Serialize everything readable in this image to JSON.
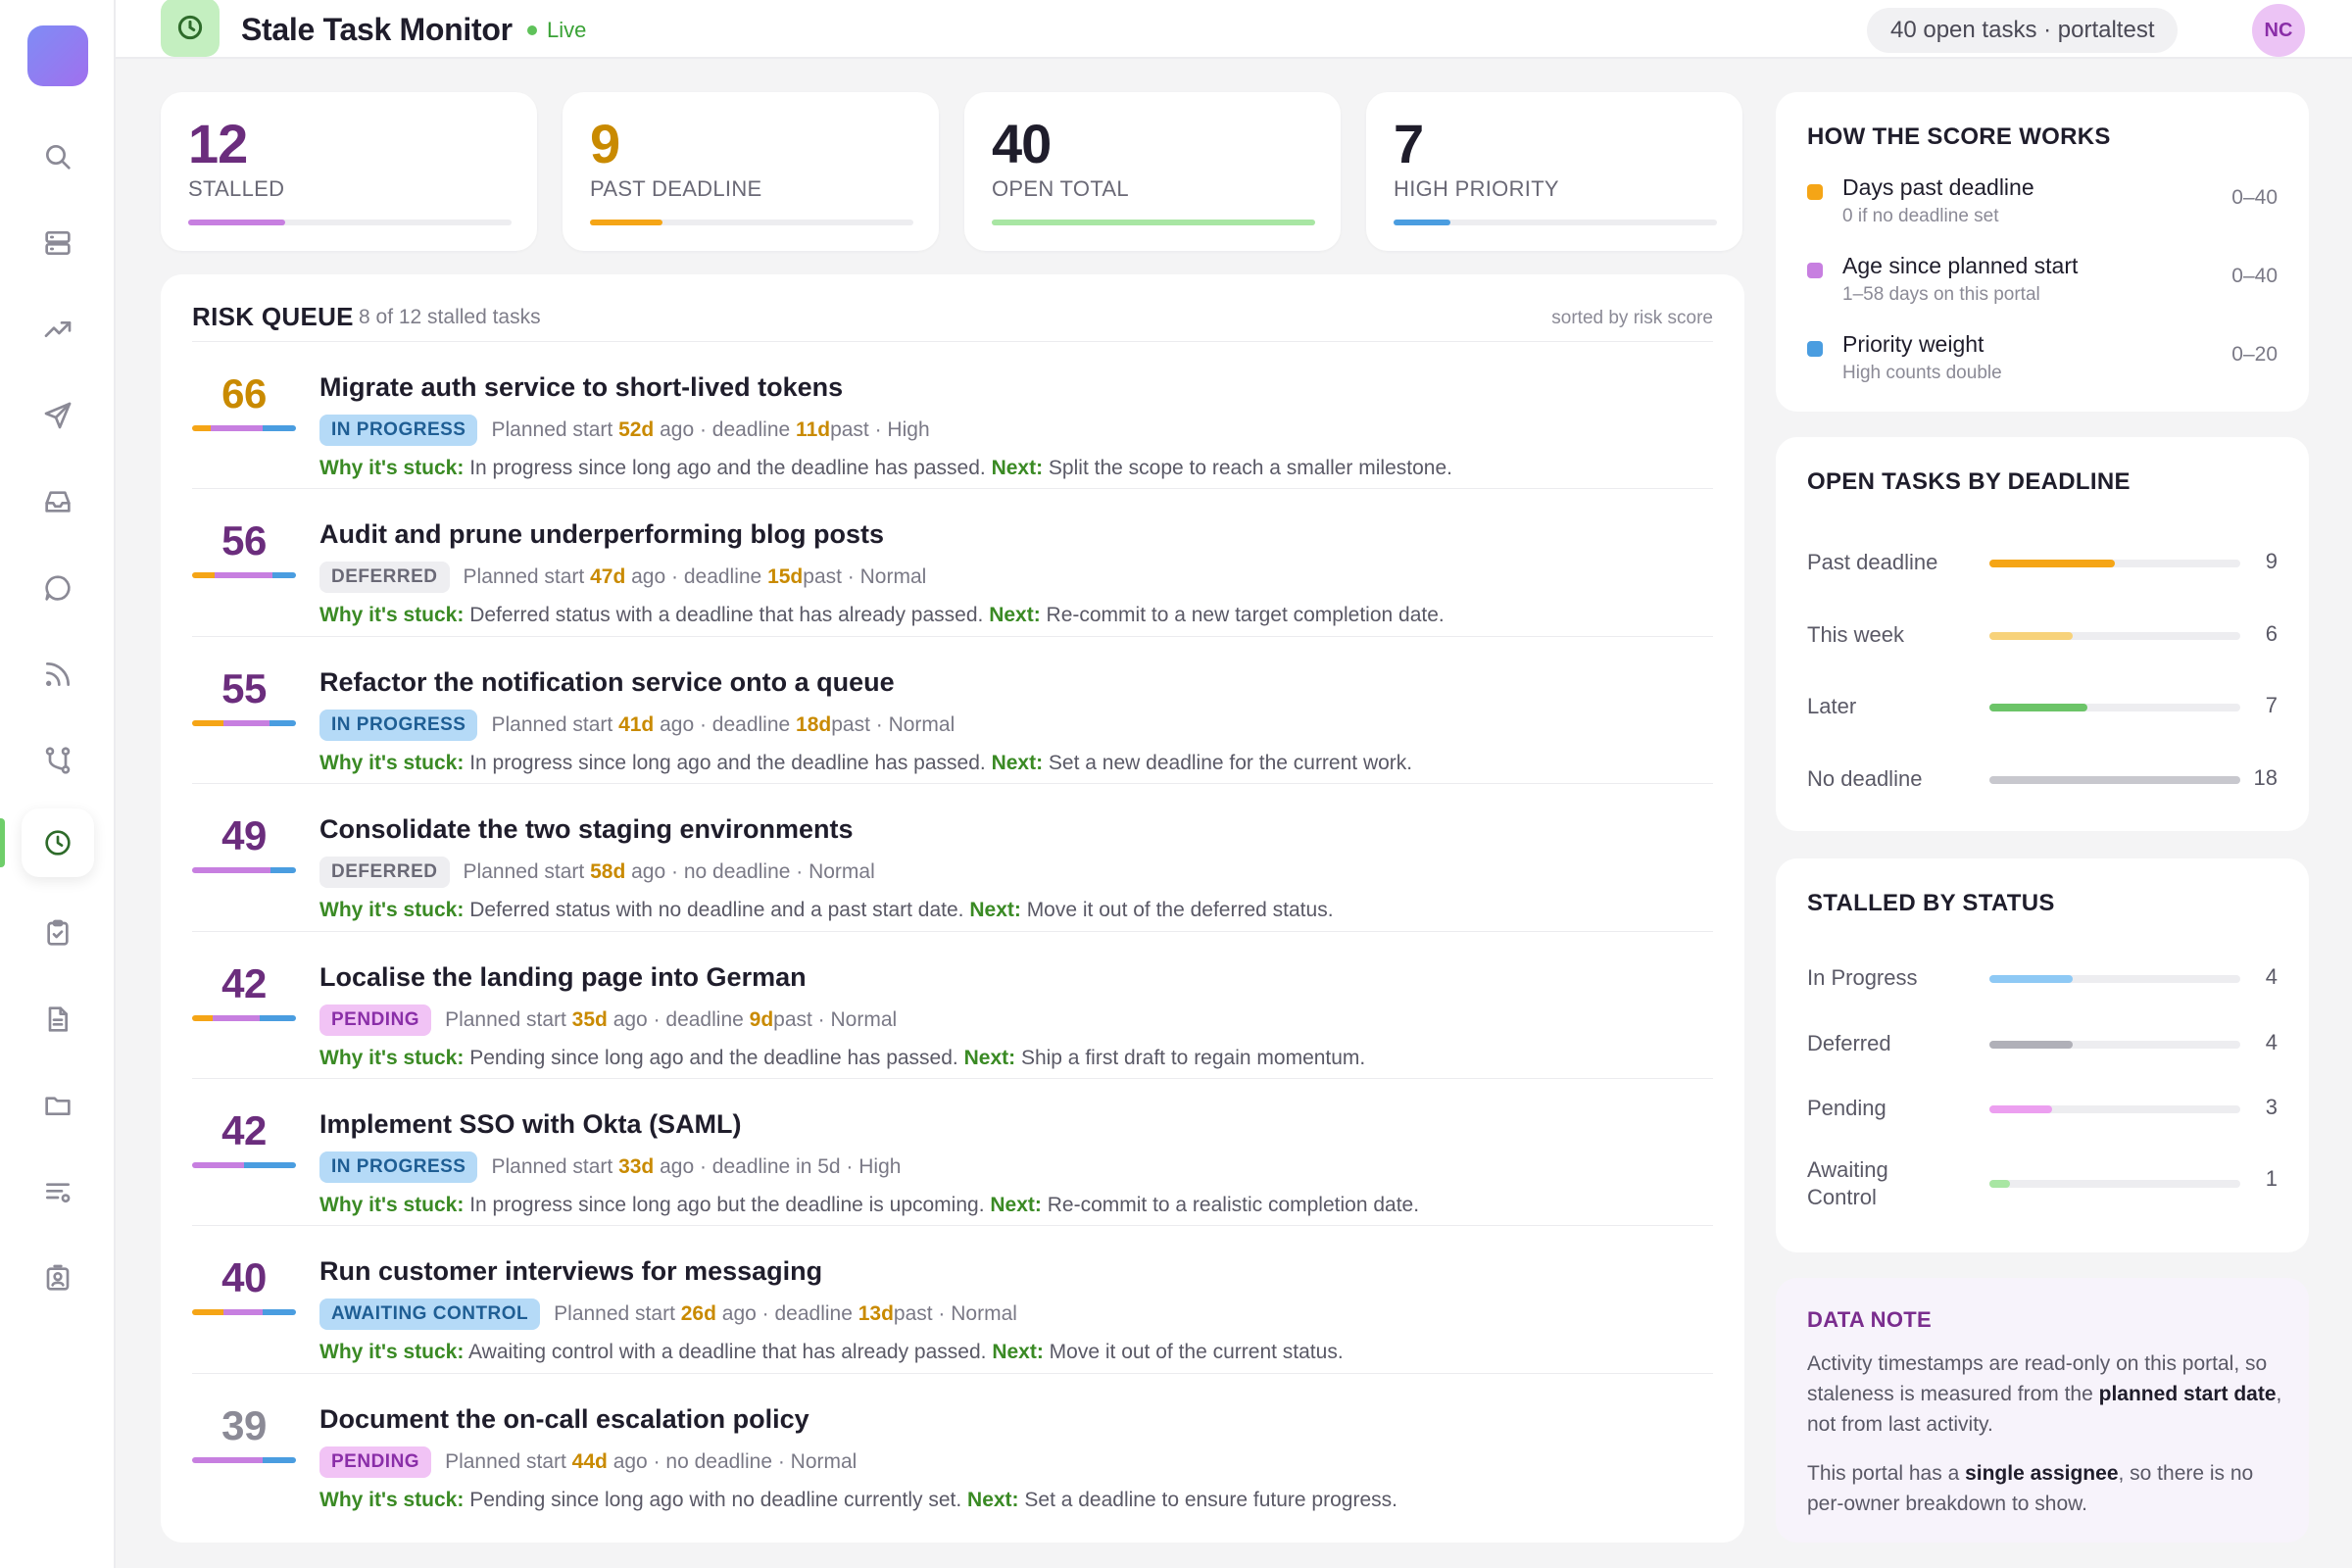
{
  "header": {
    "title": "Stale Task Monitor",
    "live_label": "Live",
    "open_tasks_chip": "40 open tasks · portaltest",
    "avatar_initials": "NC"
  },
  "sidebar": {
    "items": [
      {
        "icon": "search-icon"
      },
      {
        "icon": "server-icon"
      },
      {
        "icon": "trending-up-icon"
      },
      {
        "icon": "send-icon"
      },
      {
        "icon": "inbox-icon"
      },
      {
        "icon": "chat-icon"
      },
      {
        "icon": "rss-icon"
      },
      {
        "icon": "git-branch-icon"
      },
      {
        "icon": "clock-icon",
        "active": true
      },
      {
        "icon": "clipboard-check-icon"
      },
      {
        "icon": "document-icon"
      },
      {
        "icon": "folder-icon"
      },
      {
        "icon": "list-settings-icon"
      },
      {
        "icon": "id-badge-icon"
      }
    ]
  },
  "stats": [
    {
      "value": "12",
      "label": "STALLED",
      "color": "#6b2d7d",
      "bar_color": "#c77fe0",
      "fill_fraction": 0.3
    },
    {
      "value": "9",
      "label": "PAST DEADLINE",
      "color": "#c98a00",
      "bar_color": "#f5a516",
      "fill_fraction": 0.225
    },
    {
      "value": "40",
      "label": "OPEN TOTAL",
      "color": "#1f1d2b",
      "bar_color": "#a8e6a3",
      "fill_fraction": 1.0
    },
    {
      "value": "7",
      "label": "HIGH PRIORITY",
      "color": "#1f1d2b",
      "bar_color": "#4a9de0",
      "fill_fraction": 0.175
    }
  ],
  "queue": {
    "title": "RISK QUEUE",
    "subtitle": "8 of 12 stalled tasks",
    "sort_label": "sorted by risk score",
    "why_label": "Why it's stuck:",
    "next_label": "Next:",
    "tasks": [
      {
        "score": "66",
        "score_color": "#c98a00",
        "title": "Migrate auth service to short-lived tokens",
        "status": "IN PROGRESS",
        "status_class": "b-progress",
        "start_prefix": "Planned start ",
        "start_days": "52d",
        "start_suffix": " ago · deadline ",
        "deadline_hl": "11d",
        "deadline_suffix": " past · High",
        "why": " In progress since long ago and the deadline has passed. ",
        "next": " Split the scope to reach a smaller milestone.",
        "bar": [
          0.18,
          0.5,
          0.32
        ]
      },
      {
        "score": "56",
        "score_color": "#6b2d7d",
        "title": "Audit and prune underperforming blog posts",
        "status": "DEFERRED",
        "status_class": "b-deferred",
        "start_prefix": "Planned start ",
        "start_days": "47d",
        "start_suffix": " ago · deadline ",
        "deadline_hl": "15d",
        "deadline_suffix": " past · Normal",
        "why": " Deferred status with a deadline that has already passed. ",
        "next": " Re-commit to a new target completion date.",
        "bar": [
          0.22,
          0.55,
          0.23
        ]
      },
      {
        "score": "55",
        "score_color": "#6b2d7d",
        "title": "Refactor the notification service onto a queue",
        "status": "IN PROGRESS",
        "status_class": "b-progress",
        "start_prefix": "Planned start ",
        "start_days": "41d",
        "start_suffix": " ago · deadline ",
        "deadline_hl": "18d",
        "deadline_suffix": " past · Normal",
        "why": " In progress since long ago and the deadline has passed. ",
        "next": " Set a new deadline for the current work.",
        "bar": [
          0.3,
          0.45,
          0.25
        ]
      },
      {
        "score": "49",
        "score_color": "#6b2d7d",
        "title": "Consolidate the two staging environments",
        "status": "DEFERRED",
        "status_class": "b-deferred",
        "start_prefix": "Planned start ",
        "start_days": "58d",
        "start_suffix": " ago · no deadline · Normal",
        "deadline_hl": "",
        "deadline_suffix": "",
        "why": " Deferred status with no deadline and a past start date. ",
        "next": " Move it out of the deferred status.",
        "bar": [
          0.0,
          0.75,
          0.25
        ]
      },
      {
        "score": "42",
        "score_color": "#6b2d7d",
        "title": "Localise the landing page into German",
        "status": "PENDING",
        "status_class": "b-pending",
        "start_prefix": "Planned start ",
        "start_days": "35d",
        "start_suffix": " ago · deadline ",
        "deadline_hl": "9d",
        "deadline_suffix": " past · Normal",
        "why": " Pending since long ago and the deadline has passed. ",
        "next": " Ship a first draft to regain momentum.",
        "bar": [
          0.2,
          0.45,
          0.35
        ]
      },
      {
        "score": "42",
        "score_color": "#6b2d7d",
        "title": "Implement SSO with Okta (SAML)",
        "status": "IN PROGRESS",
        "status_class": "b-progress",
        "start_prefix": "Planned start ",
        "start_days": "33d",
        "start_suffix": " ago · deadline in 5d · High",
        "deadline_hl": "",
        "deadline_suffix": "",
        "why": " In progress since long ago but the deadline is upcoming. ",
        "next": " Re-commit to a realistic completion date.",
        "bar": [
          0.0,
          0.5,
          0.5
        ]
      },
      {
        "score": "40",
        "score_color": "#6b2d7d",
        "title": "Run customer interviews for messaging",
        "status": "AWAITING CONTROL",
        "status_class": "b-awaiting",
        "start_prefix": "Planned start ",
        "start_days": "26d",
        "start_suffix": " ago · deadline ",
        "deadline_hl": "13d",
        "deadline_suffix": " past · Normal",
        "why": " Awaiting control with a deadline that has already passed. ",
        "next": " Move it out of the current status.",
        "bar": [
          0.3,
          0.38,
          0.32
        ]
      },
      {
        "score": "39",
        "score_color": "#8b8a96",
        "title": "Document the on-call escalation policy",
        "status": "PENDING",
        "status_class": "b-pending",
        "start_prefix": "Planned start ",
        "start_days": "44d",
        "start_suffix": " ago · no deadline · Normal",
        "deadline_hl": "",
        "deadline_suffix": "",
        "why": " Pending since long ago with no deadline currently set. ",
        "next": " Set a deadline to ensure future progress.",
        "bar": [
          0.0,
          0.68,
          0.32
        ]
      }
    ]
  },
  "score_panel": {
    "title": "HOW THE SCORE WORKS",
    "items": [
      {
        "title": "Days past deadline",
        "sub": "0 if no deadline set",
        "range": "0–40",
        "color": "#f5a516"
      },
      {
        "title": "Age since planned start",
        "sub": "1–58 days on this portal",
        "range": "0–40",
        "color": "#c77fe0"
      },
      {
        "title": "Priority weight",
        "sub": "High counts double",
        "range": "0–20",
        "color": "#4a9de0"
      }
    ]
  },
  "deadline_panel": {
    "title": "OPEN TASKS BY DEADLINE",
    "rows": [
      {
        "label": "Past deadline",
        "count": "9",
        "value": 9,
        "color": "#f5a516"
      },
      {
        "label": "This week",
        "count": "6",
        "value": 6,
        "color": "#f7d27a"
      },
      {
        "label": "Later",
        "count": "7",
        "value": 7,
        "color": "#6cc468"
      },
      {
        "label": "No deadline",
        "count": "18",
        "value": 18,
        "color": "#c8c8ce"
      }
    ],
    "max": 18
  },
  "status_panel": {
    "title": "STALLED BY STATUS",
    "rows": [
      {
        "label": "In Progress",
        "count": "4",
        "value": 4,
        "color": "#8ec9f5"
      },
      {
        "label": "Deferred",
        "count": "4",
        "value": 4,
        "color": "#b0b0b8"
      },
      {
        "label": "Pending",
        "count": "3",
        "value": 3,
        "color": "#ec9ff0"
      },
      {
        "label": "Awaiting Control",
        "count": "1",
        "value": 1,
        "color": "#a8e6a3"
      }
    ],
    "max": 12
  },
  "data_note": {
    "title": "DATA NOTE",
    "p1_a": "Activity timestamps are read-only on this portal, so staleness is measured from the ",
    "p1_b": "planned start date",
    "p1_c": ", not from last activity.",
    "p2_a": "This portal has a ",
    "p2_b": "single assignee",
    "p2_c": ", so there is no per-owner breakdown to show."
  }
}
